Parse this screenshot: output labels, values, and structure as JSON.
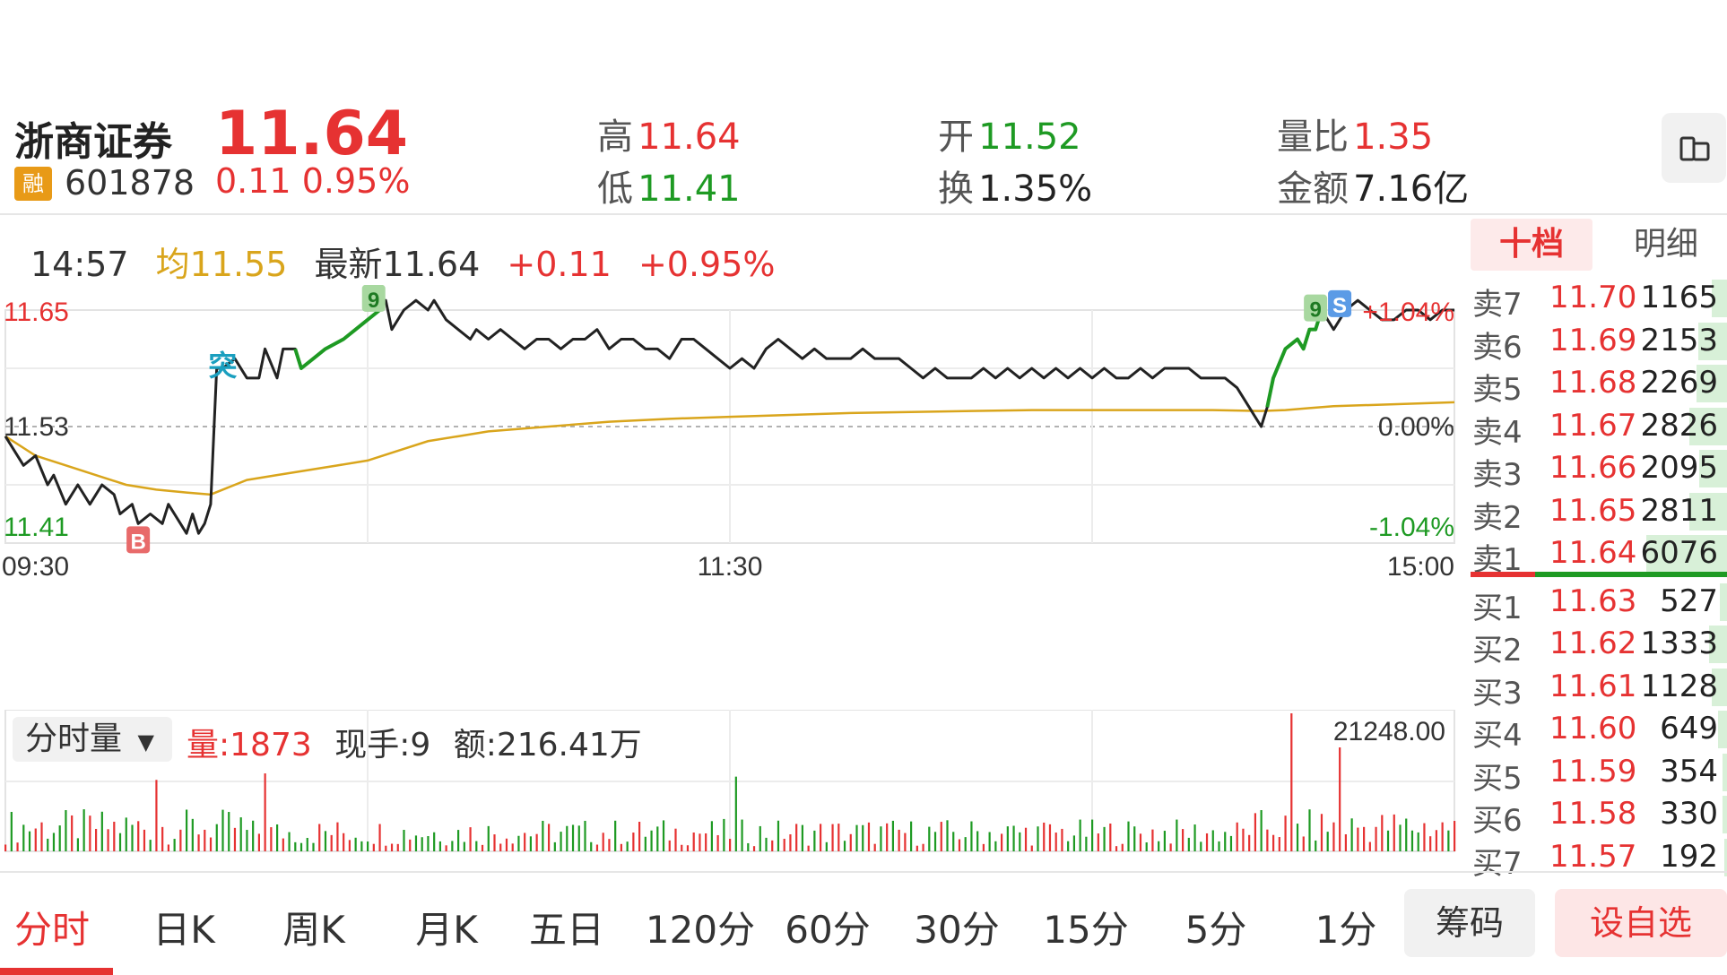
{
  "header": {
    "name": "浙商证券",
    "badge": "融",
    "code": "601878",
    "price": "11.64",
    "change": "0.11",
    "change_pct": "0.95%",
    "high_label": "高",
    "high": "11.64",
    "low_label": "低",
    "low": "11.41",
    "open_label": "开",
    "open": "11.52",
    "turnover_label": "换",
    "turnover": "1.35%",
    "vol_ratio_label": "量比",
    "vol_ratio": "1.35",
    "amount_label": "金额",
    "amount": "7.16亿"
  },
  "info": {
    "time": "14:57",
    "avg": "均11.55",
    "latest": "最新11.64",
    "chg": "+0.11",
    "chg_pct": "+0.95%"
  },
  "volume_panel": {
    "selector": "分时量",
    "vol": "量:1873",
    "hand": "现手:9",
    "amount": "额:216.41万"
  },
  "orderbook": {
    "tabs": [
      "十档",
      "明细"
    ],
    "sells": [
      {
        "label": "卖7",
        "price": "11.70",
        "vol": "1165"
      },
      {
        "label": "卖6",
        "price": "11.69",
        "vol": "2153"
      },
      {
        "label": "卖5",
        "price": "11.68",
        "vol": "2269"
      },
      {
        "label": "卖4",
        "price": "11.67",
        "vol": "2826"
      },
      {
        "label": "卖3",
        "price": "11.66",
        "vol": "2095"
      },
      {
        "label": "卖2",
        "price": "11.65",
        "vol": "2811"
      },
      {
        "label": "卖1",
        "price": "11.64",
        "vol": "6076"
      }
    ],
    "buys": [
      {
        "label": "买1",
        "price": "11.63",
        "vol": "527"
      },
      {
        "label": "买2",
        "price": "11.62",
        "vol": "1333"
      },
      {
        "label": "买3",
        "price": "11.61",
        "vol": "1128"
      },
      {
        "label": "买4",
        "price": "11.60",
        "vol": "649"
      },
      {
        "label": "买5",
        "price": "11.59",
        "vol": "354"
      },
      {
        "label": "买6",
        "price": "11.58",
        "vol": "330"
      },
      {
        "label": "买7",
        "price": "11.57",
        "vol": "192"
      }
    ]
  },
  "nav": {
    "items": [
      "分时",
      "日K",
      "周K",
      "月K",
      "五日",
      "120分",
      "60分",
      "30分",
      "15分",
      "5分",
      "1分"
    ],
    "chips": "筹码",
    "watch": "设自选"
  },
  "colors": {
    "up": "#e63232",
    "down": "#1e9a23",
    "avg_line": "#d9a51c",
    "price_line": "#222222"
  },
  "chart_data": {
    "type": "line",
    "title": "",
    "x_ticks": [
      "09:30",
      "11:30",
      "15:00"
    ],
    "y_left_ticks": [
      "11.65",
      "11.53",
      "11.41"
    ],
    "y_right_ticks": [
      "+1.04%",
      "0.00%",
      "-1.04%"
    ],
    "ylim": [
      11.41,
      11.65
    ],
    "prev_close": 11.53,
    "n_points": 241,
    "markers": [
      {
        "text": "B",
        "x_index": 22
      },
      {
        "text": "突",
        "x_index": 36
      },
      {
        "text": "9",
        "x_index": 61
      },
      {
        "text": "9",
        "x_index": 217
      },
      {
        "text": "S",
        "x_index": 221
      }
    ],
    "price_series": {
      "name": "price",
      "points": [
        [
          0,
          11.52
        ],
        [
          3,
          11.49
        ],
        [
          5,
          11.5
        ],
        [
          7,
          11.47
        ],
        [
          8,
          11.48
        ],
        [
          10,
          11.45
        ],
        [
          12,
          11.47
        ],
        [
          14,
          11.45
        ],
        [
          16,
          11.47
        ],
        [
          18,
          11.46
        ],
        [
          19,
          11.44
        ],
        [
          21,
          11.45
        ],
        [
          22,
          11.43
        ],
        [
          24,
          11.44
        ],
        [
          26,
          11.43
        ],
        [
          27,
          11.45
        ],
        [
          28,
          11.44
        ],
        [
          29,
          11.43
        ],
        [
          30,
          11.42
        ],
        [
          31,
          11.44
        ],
        [
          32,
          11.42
        ],
        [
          33,
          11.43
        ],
        [
          34,
          11.45
        ],
        [
          35,
          11.59
        ],
        [
          36,
          11.59
        ],
        [
          38,
          11.6
        ],
        [
          40,
          11.58
        ],
        [
          42,
          11.58
        ],
        [
          43,
          11.61
        ],
        [
          45,
          11.58
        ],
        [
          46,
          11.61
        ],
        [
          48,
          11.61
        ],
        [
          49,
          11.59
        ],
        [
          51,
          11.6
        ],
        [
          53,
          11.61
        ],
        [
          56,
          11.62
        ],
        [
          58,
          11.63
        ],
        [
          60,
          11.64
        ],
        [
          62,
          11.65
        ],
        [
          63,
          11.66
        ],
        [
          64,
          11.63
        ],
        [
          65,
          11.64
        ],
        [
          66,
          11.65
        ],
        [
          68,
          11.66
        ],
        [
          70,
          11.65
        ],
        [
          71,
          11.66
        ],
        [
          73,
          11.64
        ],
        [
          75,
          11.63
        ],
        [
          77,
          11.62
        ],
        [
          78,
          11.63
        ],
        [
          80,
          11.62
        ],
        [
          82,
          11.63
        ],
        [
          84,
          11.62
        ],
        [
          86,
          11.61
        ],
        [
          88,
          11.62
        ],
        [
          90,
          11.62
        ],
        [
          92,
          11.61
        ],
        [
          94,
          11.62
        ],
        [
          96,
          11.62
        ],
        [
          98,
          11.63
        ],
        [
          100,
          11.61
        ],
        [
          102,
          11.62
        ],
        [
          104,
          11.62
        ],
        [
          106,
          11.61
        ],
        [
          108,
          11.61
        ],
        [
          110,
          11.6
        ],
        [
          112,
          11.62
        ],
        [
          114,
          11.62
        ],
        [
          116,
          11.61
        ],
        [
          118,
          11.6
        ],
        [
          120,
          11.59
        ],
        [
          122,
          11.6
        ],
        [
          124,
          11.59
        ],
        [
          126,
          11.61
        ],
        [
          128,
          11.62
        ],
        [
          130,
          11.61
        ],
        [
          132,
          11.6
        ],
        [
          134,
          11.61
        ],
        [
          136,
          11.6
        ],
        [
          138,
          11.6
        ],
        [
          140,
          11.6
        ],
        [
          142,
          11.61
        ],
        [
          144,
          11.6
        ],
        [
          146,
          11.6
        ],
        [
          148,
          11.6
        ],
        [
          150,
          11.59
        ],
        [
          152,
          11.58
        ],
        [
          154,
          11.59
        ],
        [
          156,
          11.58
        ],
        [
          158,
          11.58
        ],
        [
          160,
          11.58
        ],
        [
          162,
          11.59
        ],
        [
          164,
          11.58
        ],
        [
          166,
          11.59
        ],
        [
          168,
          11.58
        ],
        [
          170,
          11.59
        ],
        [
          172,
          11.58
        ],
        [
          174,
          11.59
        ],
        [
          176,
          11.58
        ],
        [
          178,
          11.59
        ],
        [
          180,
          11.58
        ],
        [
          182,
          11.59
        ],
        [
          184,
          11.58
        ],
        [
          186,
          11.58
        ],
        [
          188,
          11.59
        ],
        [
          190,
          11.58
        ],
        [
          192,
          11.59
        ],
        [
          194,
          11.59
        ],
        [
          196,
          11.59
        ],
        [
          198,
          11.58
        ],
        [
          200,
          11.58
        ],
        [
          202,
          11.58
        ],
        [
          204,
          11.57
        ],
        [
          206,
          11.55
        ],
        [
          208,
          11.53
        ],
        [
          209,
          11.55
        ],
        [
          210,
          11.58
        ],
        [
          212,
          11.61
        ],
        [
          214,
          11.62
        ],
        [
          215,
          11.61
        ],
        [
          216,
          11.63
        ],
        [
          217,
          11.63
        ],
        [
          218,
          11.65
        ],
        [
          219,
          11.64
        ],
        [
          220,
          11.63
        ],
        [
          221,
          11.64
        ],
        [
          222,
          11.65
        ],
        [
          224,
          11.66
        ],
        [
          226,
          11.65
        ],
        [
          228,
          11.64
        ],
        [
          230,
          11.64
        ],
        [
          232,
          11.65
        ],
        [
          234,
          11.65
        ],
        [
          236,
          11.64
        ],
        [
          238,
          11.65
        ],
        [
          240,
          11.65
        ]
      ]
    },
    "avg_series": {
      "name": "avg",
      "points": [
        [
          0,
          11.52
        ],
        [
          5,
          11.5
        ],
        [
          10,
          11.49
        ],
        [
          15,
          11.48
        ],
        [
          20,
          11.47
        ],
        [
          25,
          11.465
        ],
        [
          30,
          11.462
        ],
        [
          34,
          11.46
        ],
        [
          36,
          11.465
        ],
        [
          40,
          11.475
        ],
        [
          45,
          11.48
        ],
        [
          50,
          11.485
        ],
        [
          55,
          11.49
        ],
        [
          60,
          11.495
        ],
        [
          65,
          11.505
        ],
        [
          70,
          11.515
        ],
        [
          75,
          11.52
        ],
        [
          80,
          11.525
        ],
        [
          90,
          11.53
        ],
        [
          100,
          11.535
        ],
        [
          110,
          11.538
        ],
        [
          120,
          11.54
        ],
        [
          130,
          11.542
        ],
        [
          140,
          11.544
        ],
        [
          150,
          11.545
        ],
        [
          160,
          11.546
        ],
        [
          170,
          11.547
        ],
        [
          180,
          11.547
        ],
        [
          190,
          11.547
        ],
        [
          200,
          11.547
        ],
        [
          208,
          11.546
        ],
        [
          212,
          11.547
        ],
        [
          216,
          11.549
        ],
        [
          220,
          11.551
        ],
        [
          225,
          11.552
        ],
        [
          230,
          11.553
        ],
        [
          235,
          11.554
        ],
        [
          240,
          11.555
        ]
      ]
    },
    "volume": {
      "ylabel": "",
      "max_label": "21248.00",
      "bars": [
        {
          "i": 213,
          "v": 21248,
          "dir": "up"
        },
        {
          "i": 221,
          "v": 16000,
          "dir": "up"
        },
        {
          "i": 43,
          "v": 12000,
          "dir": "up"
        },
        {
          "i": 121,
          "v": 11500,
          "dir": "down"
        },
        {
          "i": 25,
          "v": 11000,
          "dir": "up"
        }
      ]
    }
  }
}
